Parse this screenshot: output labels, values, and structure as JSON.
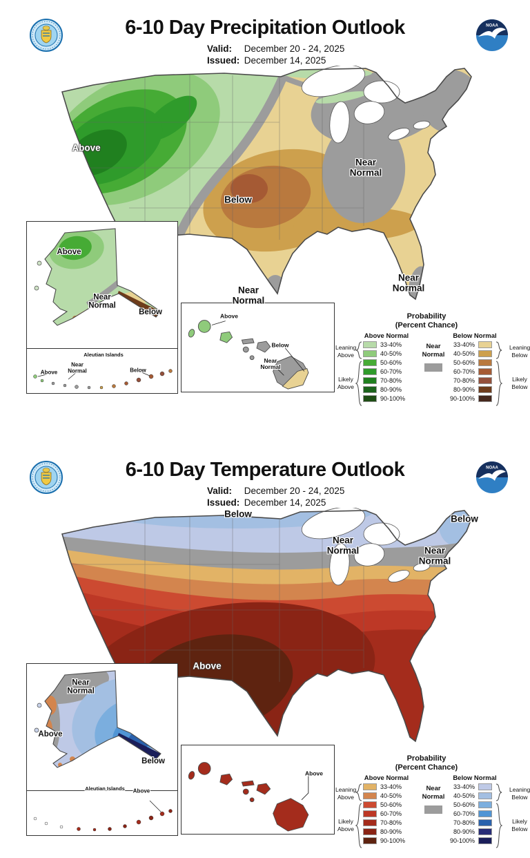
{
  "panels": [
    {
      "kind": "precipitation",
      "header": {
        "title": "6-10 Day Precipitation Outlook",
        "valid_label": "Valid:",
        "valid_value": "December 20 - 24, 2025",
        "issued_label": "Issued:",
        "issued_value": "December 14, 2025"
      },
      "logos": {
        "left_name": "us-department-of-commerce-seal",
        "right_name": "noaa-logo",
        "noaa_text": "NOAA"
      },
      "words": {
        "above": "Above",
        "below": "Below",
        "near1": "Near",
        "near2": "Normal"
      },
      "aleutian_title": "Aleutian Islands",
      "legend": {
        "title1": "Probability",
        "title2": "(Percent Chance)",
        "above_header": "Above Normal",
        "below_header": "Below Normal",
        "near1": "Near",
        "near2": "Normal",
        "near_color": "#9c9c9c",
        "ranges": [
          "33-40%",
          "40-50%",
          "50-60%",
          "60-70%",
          "70-80%",
          "80-90%",
          "90-100%"
        ],
        "above_colors": [
          "#b7dba9",
          "#8fcb7b",
          "#46ab35",
          "#2f9b2b",
          "#20801f",
          "#1c631c",
          "#1e4d15"
        ],
        "below_colors": [
          "#e8d293",
          "#cda04d",
          "#b9793e",
          "#a55a34",
          "#94503b",
          "#6e3c1b",
          "#45281c"
        ],
        "leaning": "Leaning",
        "likely": "Likely"
      }
    },
    {
      "kind": "temperature",
      "header": {
        "title": "6-10 Day Temperature Outlook",
        "valid_label": "Valid:",
        "valid_value": "December 20 - 24, 2025",
        "issued_label": "Issued:",
        "issued_value": "December 14, 2025"
      },
      "logos": {
        "left_name": "us-department-of-commerce-seal",
        "right_name": "noaa-logo",
        "noaa_text": "NOAA"
      },
      "words": {
        "above": "Above",
        "below": "Below",
        "near1": "Near",
        "near2": "Normal"
      },
      "aleutian_title": "Aleutian Islands",
      "legend": {
        "title1": "Probability",
        "title2": "(Percent Chance)",
        "above_header": "Above Normal",
        "below_header": "Below Normal",
        "near1": "Near",
        "near2": "Normal",
        "near_color": "#9c9c9c",
        "ranges": [
          "33-40%",
          "40-50%",
          "50-60%",
          "60-70%",
          "70-80%",
          "80-90%",
          "90-100%"
        ],
        "above_colors": [
          "#e2b366",
          "#d3854e",
          "#cc4a31",
          "#bd3826",
          "#a42c1c",
          "#8a2415",
          "#5e2310"
        ],
        "below_colors": [
          "#bec9e6",
          "#a3bfe2",
          "#7baede",
          "#5095d5",
          "#2a62ad",
          "#272c77",
          "#1a1e5a"
        ],
        "leaning": "Leaning",
        "likely": "Likely"
      }
    }
  ]
}
